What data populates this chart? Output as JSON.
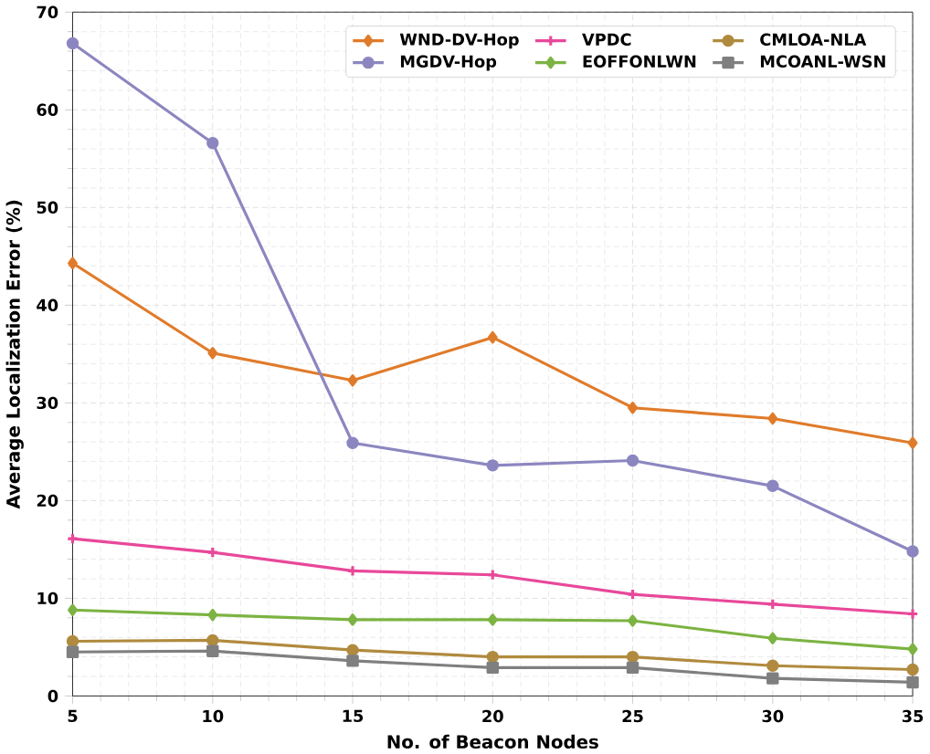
{
  "chart_data": {
    "type": "line",
    "xlabel": "No. of Beacon Nodes",
    "ylabel": "Average Localization Error (%)",
    "x": [
      5,
      10,
      15,
      20,
      25,
      30,
      35
    ],
    "xlim": [
      5,
      35
    ],
    "xticks": [
      5,
      10,
      15,
      20,
      25,
      30,
      35
    ],
    "ylim": [
      0,
      70
    ],
    "yticks": [
      0,
      10,
      20,
      30,
      40,
      50,
      60,
      70
    ],
    "grid": true,
    "legend": "top right",
    "series": [
      {
        "name": "WND-DV-Hop",
        "color": "#e07b2a",
        "marker": "diamond",
        "values": [
          44.3,
          35.1,
          32.3,
          36.7,
          29.5,
          28.4,
          25.9
        ]
      },
      {
        "name": "MGDV-Hop",
        "color": "#8c86c0",
        "marker": "circle",
        "values": [
          66.8,
          56.6,
          25.9,
          23.6,
          24.1,
          21.5,
          14.8
        ]
      },
      {
        "name": "VPDC",
        "color": "#e8489a",
        "marker": "cross",
        "values": [
          16.1,
          14.7,
          12.8,
          12.4,
          10.4,
          9.4,
          8.4
        ]
      },
      {
        "name": "EOFFONLWN",
        "color": "#7cb342",
        "marker": "diamond",
        "values": [
          8.8,
          8.3,
          7.8,
          7.8,
          7.7,
          5.9,
          4.8
        ]
      },
      {
        "name": "CMLOA-NLA",
        "color": "#b08a3e",
        "marker": "circle",
        "values": [
          5.6,
          5.7,
          4.7,
          4.0,
          4.0,
          3.1,
          2.7
        ]
      },
      {
        "name": "MCOANL-WSN",
        "color": "#7f7f7f",
        "marker": "square",
        "values": [
          4.5,
          4.6,
          3.6,
          2.9,
          2.9,
          1.8,
          1.4
        ]
      }
    ]
  }
}
